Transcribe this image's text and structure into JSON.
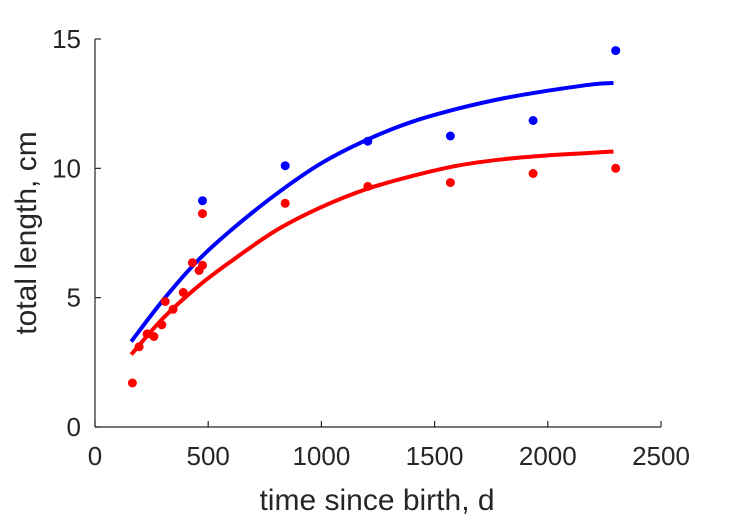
{
  "chart_data": {
    "type": "scatter",
    "title": "",
    "xlabel": "time since birth, d",
    "ylabel": "total length, cm",
    "xlim": [
      0,
      2500
    ],
    "ylim": [
      0,
      15
    ],
    "xticks": [
      0,
      500,
      1000,
      1500,
      2000,
      2500
    ],
    "yticks": [
      0,
      5,
      10,
      15
    ],
    "xtick_labels": [
      "0",
      "500",
      "1000",
      "1500",
      "2000",
      "2500"
    ],
    "ytick_labels": [
      "0",
      "5",
      "10",
      "15"
    ],
    "grid": false,
    "legend": "none",
    "series": [
      {
        "color": "#0000ff",
        "points": {
          "x": [
            475,
            840,
            1205,
            1570,
            1935,
            2300
          ],
          "y": [
            8.75,
            10.1,
            11.05,
            11.25,
            11.85,
            14.55
          ]
        },
        "fit": {
          "x": [
            160,
            300,
            450,
            600,
            800,
            1000,
            1200,
            1400,
            1600,
            1800,
            2000,
            2200,
            2290
          ],
          "y": [
            3.3,
            4.9,
            6.4,
            7.6,
            9.0,
            10.2,
            11.1,
            11.8,
            12.3,
            12.7,
            13.0,
            13.25,
            13.3
          ]
        }
      },
      {
        "color": "#ff0000",
        "points": {
          "x": [
            165,
            195,
            230,
            260,
            295,
            310,
            345,
            390,
            430,
            460,
            475,
            475,
            840,
            1205,
            1570,
            1935,
            2300
          ],
          "y": [
            1.7,
            3.1,
            3.6,
            3.5,
            3.95,
            4.85,
            4.55,
            5.2,
            6.35,
            6.05,
            6.25,
            8.25,
            8.65,
            9.3,
            9.45,
            9.8,
            10.0
          ]
        },
        "fit": {
          "x": [
            160,
            300,
            450,
            600,
            800,
            1000,
            1200,
            1400,
            1600,
            1800,
            2000,
            2200,
            2290
          ],
          "y": [
            2.8,
            4.2,
            5.4,
            6.4,
            7.6,
            8.5,
            9.2,
            9.7,
            10.1,
            10.35,
            10.5,
            10.6,
            10.65
          ]
        }
      }
    ]
  }
}
